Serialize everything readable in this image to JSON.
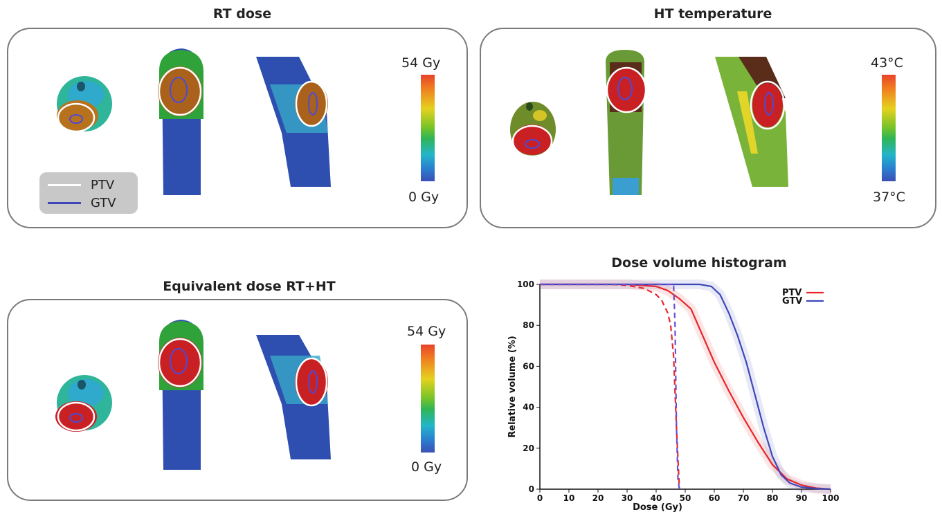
{
  "panels": {
    "rt_dose": {
      "title": "RT dose",
      "scale_max": "54 Gy",
      "scale_min": "0 Gy"
    },
    "ht_temperature": {
      "title": "HT temperature",
      "scale_max": "43°C",
      "scale_min": "37°C"
    },
    "equivalent_dose": {
      "title": "Equivalent dose RT+HT",
      "scale_max": "54 Gy",
      "scale_min": "0 Gy"
    }
  },
  "legend": {
    "ptv": {
      "label": "PTV",
      "color": "#ffffff"
    },
    "gtv": {
      "label": "GTV",
      "color": "#3e47b8"
    }
  },
  "chart_data": {
    "type": "line",
    "title": "Dose volume histogram",
    "xlabel": "Dose (Gy)",
    "ylabel": "Relative volume (%)",
    "xlim": [
      0,
      100
    ],
    "ylim": [
      0,
      100
    ],
    "xticks": [
      0,
      10,
      20,
      30,
      40,
      50,
      60,
      70,
      80,
      90,
      100
    ],
    "yticks": [
      0,
      20,
      40,
      60,
      80,
      100
    ],
    "legend_position": "top-right",
    "series": [
      {
        "name": "PTV",
        "color": "#e8262a",
        "style": "solid",
        "x": [
          0,
          30,
          40,
          44,
          48,
          52,
          56,
          60,
          65,
          70,
          75,
          80,
          85,
          90,
          95,
          100
        ],
        "y": [
          100,
          100,
          99,
          97,
          93,
          88,
          75,
          62,
          48,
          35,
          23,
          12,
          5,
          2,
          0.5,
          0
        ]
      },
      {
        "name": "PTV",
        "color": "#e8262a",
        "style": "dashed",
        "x": [
          0,
          25,
          30,
          36,
          40,
          42,
          44,
          45,
          46,
          47,
          48
        ],
        "y": [
          100,
          100,
          99.5,
          98,
          95,
          92,
          86,
          80,
          65,
          30,
          0
        ]
      },
      {
        "name": "GTV",
        "color": "#3e47b8",
        "style": "solid",
        "x": [
          0,
          55,
          59,
          62,
          65,
          68,
          71,
          74,
          77,
          80,
          83,
          86,
          90,
          95,
          100
        ],
        "y": [
          100,
          100,
          99,
          95,
          86,
          75,
          62,
          46,
          30,
          16,
          7,
          3,
          1,
          0.3,
          0
        ]
      },
      {
        "name": "GTV",
        "color": "#6a4fd0",
        "style": "dashed",
        "x": [
          0,
          46,
          46.5,
          47,
          47.5,
          48
        ],
        "y": [
          100,
          100,
          80,
          30,
          5,
          0
        ]
      }
    ]
  }
}
